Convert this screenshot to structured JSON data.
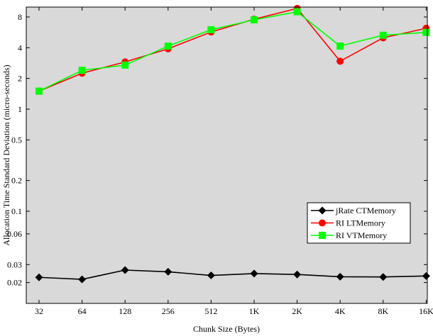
{
  "chart_data": {
    "type": "line",
    "xlabel": "Chunk Size (Bytes)",
    "ylabel": "Allocation Time Standard Deviation (micro-seconds)",
    "yscale": "log",
    "ylim": [
      0.0125,
      10
    ],
    "grid": false,
    "legend_position": "bottom-right",
    "background_color": "#d9d9d9",
    "categories": [
      "32",
      "64",
      "128",
      "256",
      "512",
      "1K",
      "2K",
      "4K",
      "8K",
      "16K"
    ],
    "y_ticks": [
      {
        "value": 0.02,
        "label": "0.02"
      },
      {
        "value": 0.03,
        "label": "0.03"
      },
      {
        "value": 0.06,
        "label": "0.06"
      },
      {
        "value": 0.1,
        "label": "0.1"
      },
      {
        "value": 0.2,
        "label": "0.2"
      },
      {
        "value": 0.5,
        "label": "0.5"
      },
      {
        "value": 1,
        "label": "1"
      },
      {
        "value": 2,
        "label": "2"
      },
      {
        "value": 4,
        "label": "4"
      },
      {
        "value": 8,
        "label": "8"
      }
    ],
    "series": [
      {
        "name": "jRate CTMemory",
        "color": "#000000",
        "marker": "diamond",
        "values": [
          0.0225,
          0.0215,
          0.0265,
          0.0255,
          0.0235,
          0.0245,
          0.024,
          0.0228,
          0.0227,
          0.0232
        ]
      },
      {
        "name": "RI LTMemory",
        "color": "#ff0000",
        "marker": "circle",
        "values": [
          1.5,
          2.25,
          2.9,
          3.9,
          5.7,
          7.6,
          9.7,
          2.95,
          5.0,
          6.2
        ]
      },
      {
        "name": "RI VTMemory",
        "color": "#00ff00",
        "marker": "square",
        "values": [
          1.5,
          2.4,
          2.7,
          4.15,
          6.0,
          7.5,
          9.0,
          4.15,
          5.3,
          5.65
        ]
      }
    ]
  }
}
